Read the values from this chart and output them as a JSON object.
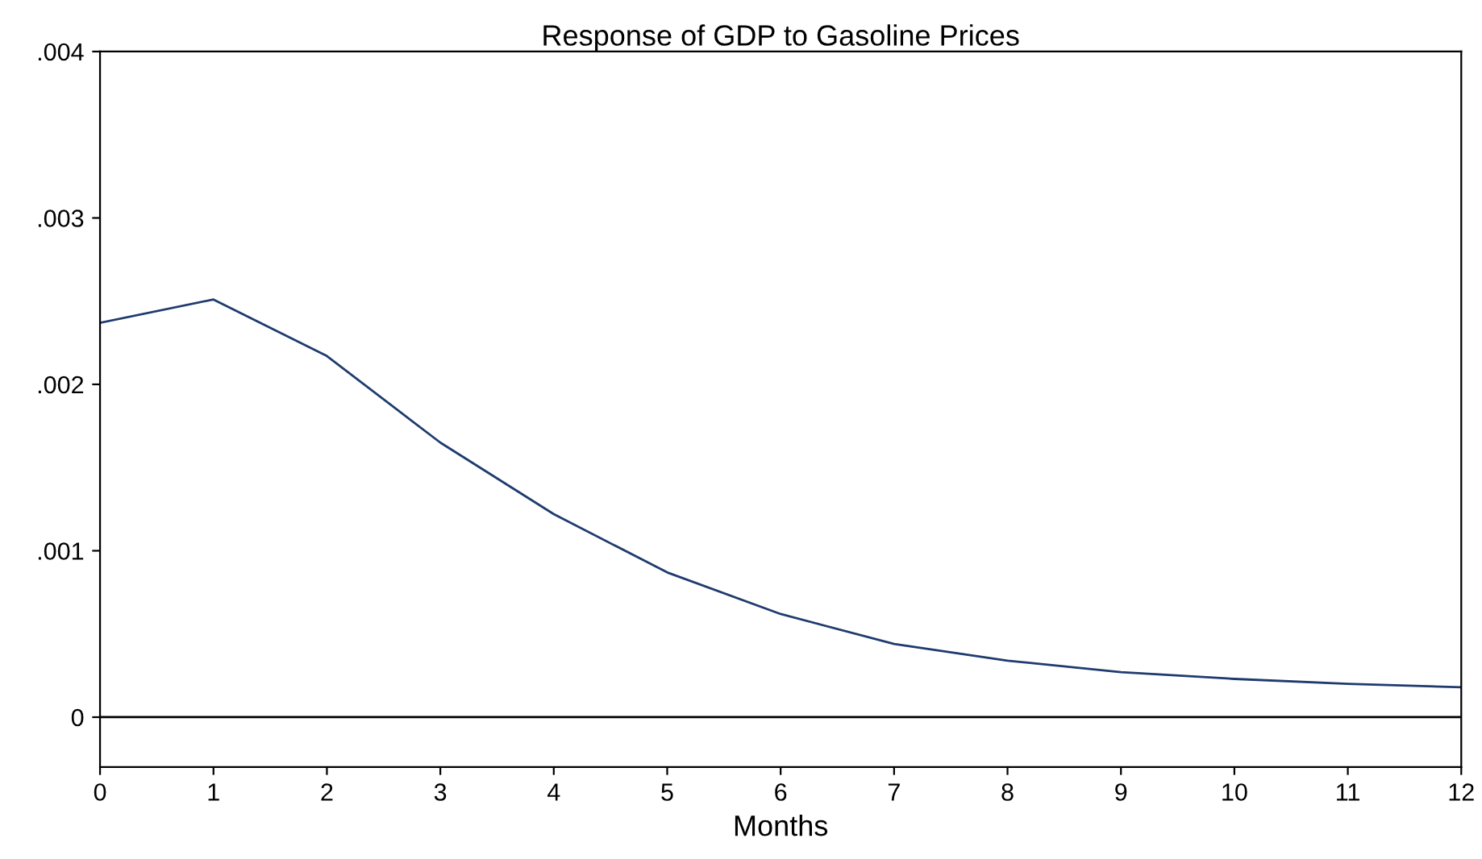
{
  "chart_data": {
    "type": "line",
    "title": "Response of GDP to Gasoline Prices",
    "xlabel": "Months",
    "x": [
      0,
      1,
      2,
      3,
      4,
      5,
      6,
      7,
      8,
      9,
      10,
      11,
      12
    ],
    "series": [
      {
        "color": "#1f3b6e",
        "values": [
          0.00237,
          0.00251,
          0.00217,
          0.00165,
          0.00122,
          0.00087,
          0.00062,
          0.00044,
          0.00034,
          0.00027,
          0.00023,
          0.0002,
          0.00018
        ]
      }
    ],
    "xlim": [
      0,
      12
    ],
    "xticks": [
      0,
      1,
      2,
      3,
      4,
      5,
      6,
      7,
      8,
      9,
      10,
      11,
      12
    ],
    "ylim": [
      -0.0003,
      0.004
    ],
    "yticks": [
      {
        "value": 0,
        "label": "0"
      },
      {
        "value": 0.001,
        "label": ".001"
      },
      {
        "value": 0.002,
        "label": ".002"
      },
      {
        "value": 0.003,
        "label": ".003"
      },
      {
        "value": 0.004,
        "label": ".004"
      }
    ],
    "ref_lines": [
      {
        "axis": "y",
        "value": 0,
        "color": "#000000"
      }
    ],
    "grid": false,
    "legend": false,
    "marker": "none",
    "line_style": "solid"
  }
}
